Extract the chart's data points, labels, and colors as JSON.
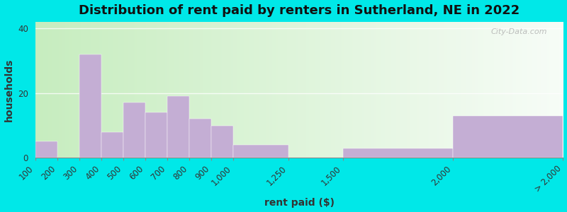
{
  "title": "Distribution of rent paid by renters in Sutherland, NE in 2022",
  "xlabel": "rent paid ($)",
  "ylabel": "households",
  "bar_color": "#c4aed4",
  "outer_background": "#00e8e8",
  "bg_color_left": "#c8edc0",
  "bg_color_right": "#f0f8f0",
  "title_fontsize": 13,
  "axis_label_fontsize": 10,
  "tick_fontsize": 8.5,
  "watermark_text": "City-Data.com",
  "ylim": [
    0,
    42
  ],
  "yticks": [
    0,
    20,
    40
  ],
  "bin_edges": [
    100,
    200,
    300,
    400,
    500,
    600,
    700,
    800,
    900,
    1000,
    1250,
    1500,
    2000,
    2500
  ],
  "bin_labels": [
    "100",
    "200",
    "300",
    "400",
    "500",
    "600",
    "700",
    "800",
    "900",
    "1,000",
    "1,250",
    "1,500",
    "2,000",
    "> 2,000"
  ],
  "values": [
    5,
    0,
    32,
    8,
    17,
    14,
    19,
    12,
    10,
    4,
    0,
    3,
    13,
    0
  ]
}
